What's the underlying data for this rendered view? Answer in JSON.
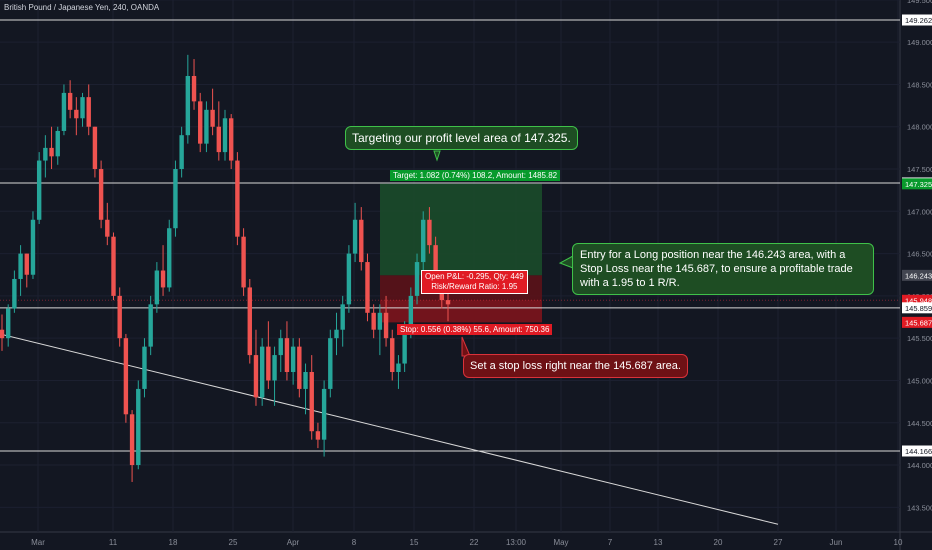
{
  "chart_data": {
    "type": "candlestick",
    "title": "British Pound / Japanese Yen, 240, OANDA",
    "ylim": [
      143.3,
      149.5
    ],
    "y_ticks": [
      149.5,
      149.0,
      148.5,
      148.0,
      147.5,
      147.0,
      146.5,
      146.0,
      145.5,
      145.0,
      144.5,
      144.0,
      143.5
    ],
    "x_ticks": [
      "Mar",
      "11",
      "18",
      "25",
      "Apr",
      "8",
      "15",
      "22",
      "13:00",
      "May",
      "7",
      "13",
      "20",
      "27",
      "Jun",
      "10"
    ],
    "horizontal_lines": [
      149.262,
      147.335,
      145.859,
      144.166
    ],
    "price_labels": [
      {
        "value": "149.262",
        "style": "white"
      },
      {
        "value": "147.335",
        "style": "white"
      },
      {
        "value": "147.325",
        "style": "green"
      },
      {
        "value": "146.243",
        "style": "grey"
      },
      {
        "value": "145.948",
        "style": "red"
      },
      {
        "value": "145.859",
        "style": "white"
      },
      {
        "value": "145.687",
        "style": "red"
      },
      {
        "value": "144.166",
        "style": "white"
      }
    ],
    "trendline": {
      "from": [
        "Feb 25",
        145.55
      ],
      "to": [
        "May 27",
        143.3
      ]
    },
    "position": {
      "type": "long",
      "entry": 146.243,
      "target": 147.325,
      "stop": 145.687,
      "target_label": "Target: 1.082 (0.74%) 108.2, Amount: 1485.82",
      "stop_label": "Stop: 0.556 (0.38%) 55.6, Amount: 750.36",
      "pnl_label": "Open P&L: -0.295, Qty: 449",
      "rr_label": "Risk/Reward Ratio: 1.95"
    },
    "annotations": [
      "Targeting our profit level area of 147.325.",
      "Entry for a Long position near the 146.243 area, with a Stop Loss near the 145.687, to ensure a profitable trade with a 1.95 to 1 R/R.",
      "Set a stop loss right near the 145.687 area."
    ],
    "candles": [
      [
        145.6,
        145.78,
        145.35,
        145.5
      ],
      [
        145.5,
        145.9,
        145.4,
        145.85
      ],
      [
        145.85,
        146.3,
        145.8,
        146.2
      ],
      [
        146.2,
        146.6,
        146.0,
        146.5
      ],
      [
        146.5,
        146.5,
        146.1,
        146.25
      ],
      [
        146.25,
        147.0,
        146.2,
        146.9
      ],
      [
        146.9,
        147.7,
        146.85,
        147.6
      ],
      [
        147.6,
        147.9,
        147.4,
        147.75
      ],
      [
        147.75,
        148.0,
        147.5,
        147.65
      ],
      [
        147.65,
        148.0,
        147.55,
        147.95
      ],
      [
        147.95,
        148.5,
        147.9,
        148.4
      ],
      [
        148.4,
        148.55,
        148.1,
        148.2
      ],
      [
        148.2,
        148.35,
        147.9,
        148.1
      ],
      [
        148.1,
        148.4,
        148.0,
        148.35
      ],
      [
        148.35,
        148.5,
        147.9,
        148.0
      ],
      [
        148.0,
        148.0,
        147.4,
        147.5
      ],
      [
        147.5,
        147.6,
        146.8,
        146.9
      ],
      [
        146.9,
        147.1,
        146.6,
        146.7
      ],
      [
        146.7,
        146.75,
        145.95,
        146.0
      ],
      [
        146.0,
        146.1,
        145.4,
        145.5
      ],
      [
        145.5,
        145.55,
        144.5,
        144.6
      ],
      [
        144.6,
        144.65,
        143.8,
        144.0
      ],
      [
        144.0,
        145.0,
        143.95,
        144.9
      ],
      [
        144.9,
        145.5,
        144.8,
        145.4
      ],
      [
        145.4,
        146.0,
        145.3,
        145.9
      ],
      [
        145.9,
        146.4,
        145.8,
        146.3
      ],
      [
        146.3,
        146.6,
        146.0,
        146.1
      ],
      [
        146.1,
        146.9,
        146.05,
        146.8
      ],
      [
        146.8,
        147.6,
        146.7,
        147.5
      ],
      [
        147.5,
        148.0,
        147.4,
        147.9
      ],
      [
        147.9,
        148.85,
        147.8,
        148.6
      ],
      [
        148.6,
        148.8,
        148.2,
        148.3
      ],
      [
        148.3,
        148.4,
        147.7,
        147.8
      ],
      [
        147.8,
        148.3,
        147.7,
        148.2
      ],
      [
        148.2,
        148.45,
        147.9,
        148.0
      ],
      [
        148.0,
        148.3,
        147.6,
        147.7
      ],
      [
        147.7,
        148.2,
        147.6,
        148.1
      ],
      [
        148.1,
        148.15,
        147.5,
        147.6
      ],
      [
        147.6,
        147.7,
        146.6,
        146.7
      ],
      [
        146.7,
        146.8,
        146.0,
        146.1
      ],
      [
        146.1,
        146.2,
        145.2,
        145.3
      ],
      [
        145.3,
        145.6,
        144.7,
        144.8
      ],
      [
        144.8,
        145.5,
        144.7,
        145.4
      ],
      [
        145.4,
        145.7,
        144.9,
        145.0
      ],
      [
        145.0,
        145.4,
        144.7,
        145.3
      ],
      [
        145.3,
        145.6,
        145.1,
        145.5
      ],
      [
        145.5,
        145.7,
        145.0,
        145.1
      ],
      [
        145.1,
        145.5,
        144.95,
        145.4
      ],
      [
        145.4,
        145.5,
        144.8,
        144.9
      ],
      [
        144.9,
        145.2,
        144.6,
        145.1
      ],
      [
        145.1,
        145.3,
        144.3,
        144.4
      ],
      [
        144.4,
        144.5,
        144.2,
        144.3
      ],
      [
        144.3,
        145.0,
        144.1,
        144.9
      ],
      [
        144.9,
        145.6,
        144.8,
        145.5
      ],
      [
        145.5,
        145.8,
        145.3,
        145.6
      ],
      [
        145.6,
        146.0,
        145.4,
        145.9
      ],
      [
        145.9,
        146.6,
        145.8,
        146.5
      ],
      [
        146.5,
        147.1,
        146.4,
        146.9
      ],
      [
        146.9,
        147.05,
        146.3,
        146.4
      ],
      [
        146.4,
        146.5,
        145.7,
        145.8
      ],
      [
        145.8,
        145.9,
        145.5,
        145.6
      ],
      [
        145.6,
        145.9,
        145.3,
        145.8
      ],
      [
        145.8,
        146.0,
        145.4,
        145.5
      ],
      [
        145.5,
        145.6,
        145.0,
        145.1
      ],
      [
        145.1,
        145.3,
        144.9,
        145.2
      ],
      [
        145.2,
        145.7,
        145.1,
        145.6
      ],
      [
        145.6,
        146.1,
        145.5,
        146.0
      ],
      [
        146.0,
        146.5,
        145.9,
        146.4
      ],
      [
        146.4,
        147.0,
        146.3,
        146.9
      ],
      [
        146.9,
        147.05,
        146.5,
        146.6
      ],
      [
        146.6,
        146.7,
        146.1,
        146.2
      ],
      [
        146.2,
        146.3,
        145.85,
        145.95
      ],
      [
        145.95,
        146.05,
        145.7,
        145.9
      ]
    ]
  }
}
